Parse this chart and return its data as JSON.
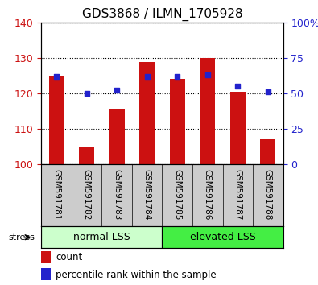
{
  "title": "GDS3868 / ILMN_1705928",
  "categories": [
    "GSM591781",
    "GSM591782",
    "GSM591783",
    "GSM591784",
    "GSM591785",
    "GSM591786",
    "GSM591787",
    "GSM591788"
  ],
  "counts": [
    125,
    105,
    115.5,
    129,
    124,
    130,
    120.5,
    107
  ],
  "percentiles": [
    62,
    50,
    52,
    62,
    62,
    63,
    55,
    51
  ],
  "ylim_left": [
    100,
    140
  ],
  "ylim_right": [
    0,
    100
  ],
  "yticks_left": [
    100,
    110,
    120,
    130,
    140
  ],
  "yticks_right": [
    0,
    25,
    50,
    75,
    100
  ],
  "bar_color": "#cc1111",
  "dot_color": "#2222cc",
  "group1_label": "normal LSS",
  "group2_label": "elevated LSS",
  "group1_color": "#ccffcc",
  "group2_color": "#44ee44",
  "group1_indices": [
    0,
    1,
    2,
    3
  ],
  "group2_indices": [
    4,
    5,
    6,
    7
  ],
  "stress_label": "stress",
  "legend_count": "count",
  "legend_percentile": "percentile rank within the sample",
  "bar_width": 0.5,
  "background_color": "#ffffff",
  "tick_label_color_left": "#cc1111",
  "tick_label_color_right": "#2222cc",
  "xticklabel_bg": "#cccccc"
}
